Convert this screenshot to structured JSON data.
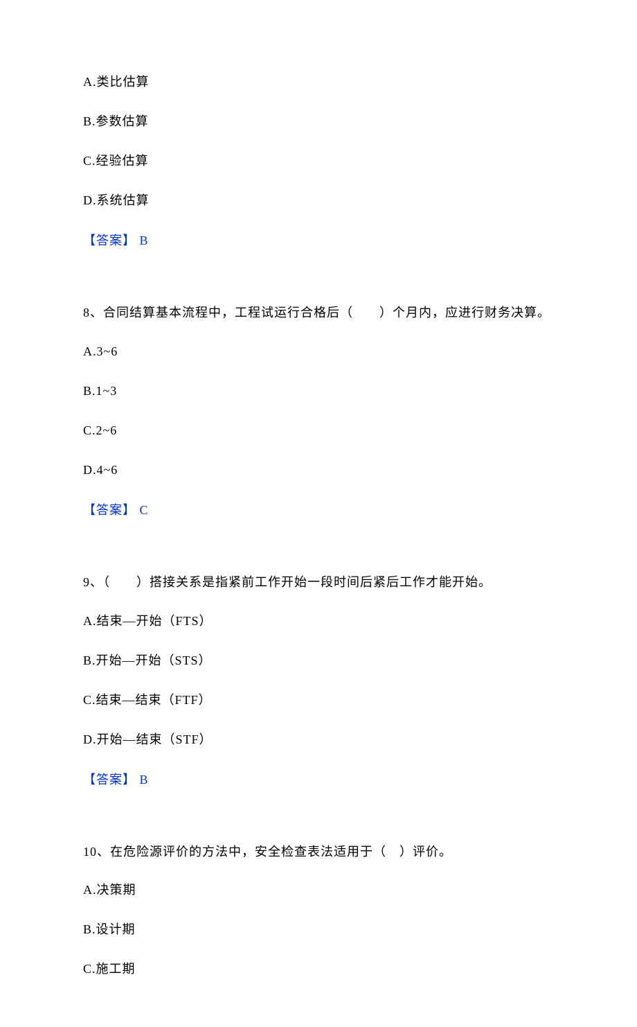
{
  "text_color": "#000000",
  "answer_color": "#0033cc",
  "background_color": "#ffffff",
  "font_family": "SimSun",
  "font_size": 18,
  "q7": {
    "options": {
      "a": "A.类比估算",
      "b": "B.参数估算",
      "c": "C.经验估算",
      "d": "D.系统估算"
    },
    "answer_label": "【答案】 B"
  },
  "q8": {
    "stem": "8、合同结算基本流程中，工程试运行合格后（　　）个月内，应进行财务决算。",
    "options": {
      "a": "A.3~6",
      "b": "B.1~3",
      "c": "C.2~6",
      "d": "D.4~6"
    },
    "answer_label": "【答案】 C"
  },
  "q9": {
    "stem": "9、（　　）搭接关系是指紧前工作开始一段时间后紧后工作才能开始。",
    "options": {
      "a": "A.结束—开始（FTS）",
      "b": "B.开始—开始（STS）",
      "c": "C.结束—结束（FTF）",
      "d": "D.开始—结束（STF）"
    },
    "answer_label": "【答案】 B"
  },
  "q10": {
    "stem": "10、在危险源评价的方法中，安全检查表法适用于（　）评价。",
    "options": {
      "a": "A.决策期",
      "b": "B.设计期",
      "c": "C.施工期"
    }
  }
}
